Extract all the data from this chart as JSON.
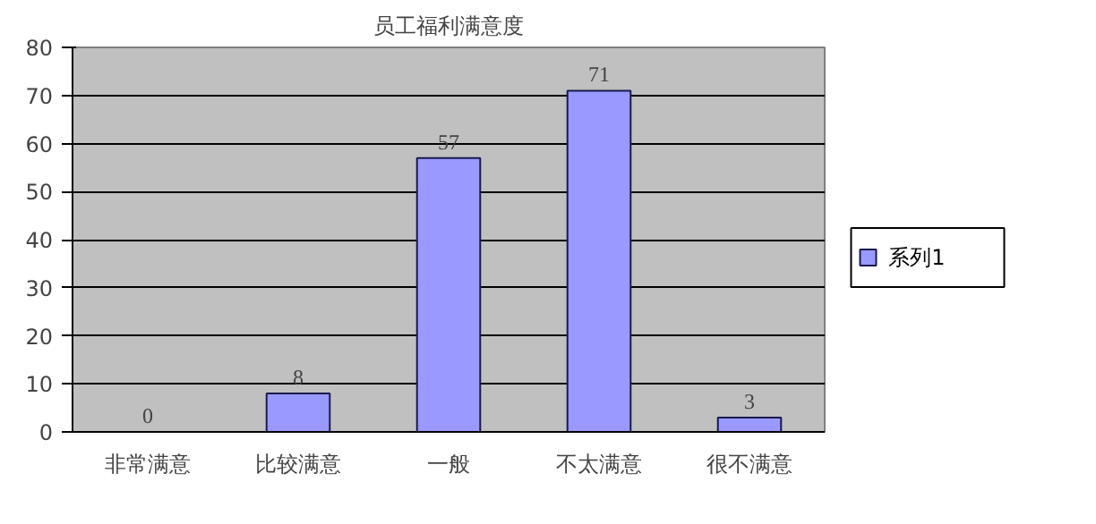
{
  "chart_data": {
    "type": "bar",
    "title": "员工福利满意度",
    "categories": [
      "非常满意",
      "比较满意",
      "一般",
      "不太满意",
      "很不满意"
    ],
    "series": [
      {
        "name": "系列1",
        "color": "#9999ff",
        "values": [
          0,
          8,
          57,
          71,
          3
        ]
      }
    ],
    "ylim": [
      0,
      80
    ],
    "yticks": [
      0,
      10,
      20,
      30,
      40,
      50,
      60,
      70,
      80
    ],
    "grid": "y",
    "legend": "right",
    "data_labels": true
  }
}
